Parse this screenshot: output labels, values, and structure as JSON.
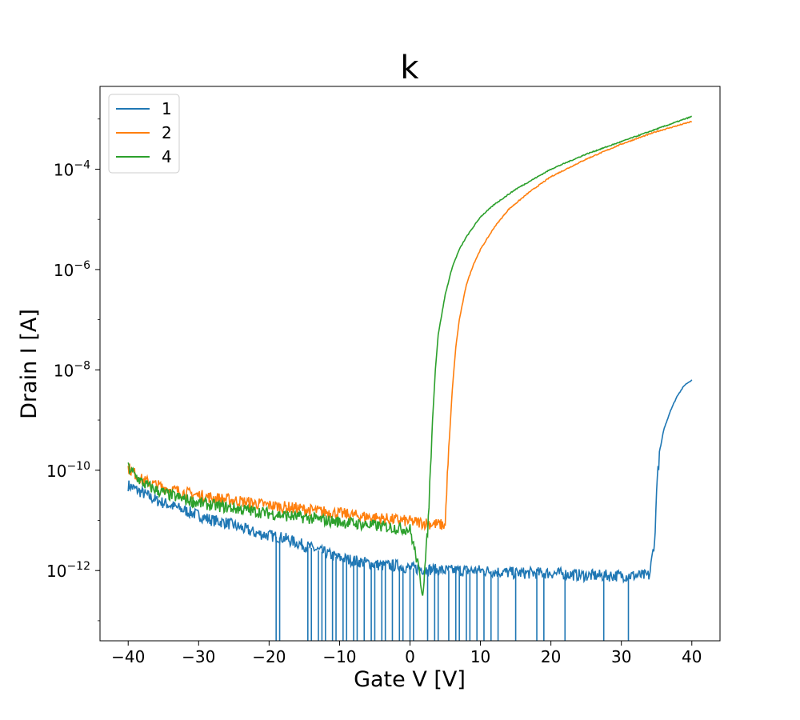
{
  "chart_data": {
    "type": "line",
    "title": "k",
    "xlabel": "Gate V [V]",
    "ylabel": "Drain I [A]",
    "xlim": [
      -44,
      44
    ],
    "ylim_log10": [
      -13.4,
      -2.35
    ],
    "yscale": "log",
    "grid": false,
    "legend_placement": "top-left",
    "x_ticks": [
      -40,
      -30,
      -20,
      -10,
      0,
      10,
      20,
      30,
      40
    ],
    "x_tick_labels": [
      "−40",
      "−30",
      "−20",
      "−10",
      "0",
      "10",
      "20",
      "30",
      "40"
    ],
    "y_ticks_log10": [
      -12,
      -10,
      -8,
      -6,
      -4
    ],
    "y_tick_labels": [
      {
        "base": "10",
        "exp": "−12"
      },
      {
        "base": "10",
        "exp": "−10"
      },
      {
        "base": "10",
        "exp": "−8"
      },
      {
        "base": "10",
        "exp": "−6"
      },
      {
        "base": "10",
        "exp": "−4"
      }
    ],
    "series": [
      {
        "name": "1",
        "color": "#1f77b4",
        "points_log10": [
          [
            -40,
            -10.3
          ],
          [
            -38,
            -10.45
          ],
          [
            -36,
            -10.6
          ],
          [
            -34,
            -10.7
          ],
          [
            -32,
            -10.8
          ],
          [
            -30,
            -10.9
          ],
          [
            -28,
            -11.0
          ],
          [
            -26,
            -11.05
          ],
          [
            -24,
            -11.15
          ],
          [
            -22,
            -11.25
          ],
          [
            -20,
            -11.3
          ],
          [
            -18,
            -11.35
          ],
          [
            -16,
            -11.45
          ],
          [
            -14,
            -11.55
          ],
          [
            -12,
            -11.65
          ],
          [
            -10,
            -11.75
          ],
          [
            -8,
            -11.8
          ],
          [
            -6,
            -11.85
          ],
          [
            -4,
            -11.9
          ],
          [
            -2,
            -11.9
          ],
          [
            0,
            -11.95
          ],
          [
            5,
            -12.0
          ],
          [
            10,
            -12.0
          ],
          [
            15,
            -12.05
          ],
          [
            20,
            -12.05
          ],
          [
            25,
            -12.1
          ],
          [
            30,
            -12.1
          ],
          [
            34,
            -12.1
          ],
          [
            34.8,
            -11.3
          ],
          [
            35,
            -10.3
          ],
          [
            35.5,
            -9.6
          ],
          [
            36,
            -9.2
          ],
          [
            37,
            -8.8
          ],
          [
            38,
            -8.5
          ],
          [
            39,
            -8.3
          ],
          [
            40,
            -8.2
          ]
        ],
        "spikes_x": [
          -19,
          -18.5,
          -14.5,
          -14,
          -13,
          -12.5,
          -12,
          -11,
          -10.5,
          -9.5,
          -9,
          -8,
          -7.5,
          -6.5,
          -5.5,
          -5,
          -4,
          -3.5,
          -2.5,
          -1.5,
          -1,
          0,
          0.5,
          2.5,
          3.5,
          4,
          5.5,
          6.5,
          7,
          8,
          8.5,
          9.5,
          10.5,
          11.5,
          12.5,
          15,
          18,
          19,
          22,
          27.5,
          31
        ]
      },
      {
        "name": "2",
        "color": "#ff7f0e",
        "points_log10": [
          [
            -40,
            -9.95
          ],
          [
            -38,
            -10.2
          ],
          [
            -36,
            -10.3
          ],
          [
            -34,
            -10.38
          ],
          [
            -32,
            -10.45
          ],
          [
            -30,
            -10.5
          ],
          [
            -28,
            -10.55
          ],
          [
            -26,
            -10.58
          ],
          [
            -24,
            -10.62
          ],
          [
            -22,
            -10.66
          ],
          [
            -20,
            -10.7
          ],
          [
            -18,
            -10.73
          ],
          [
            -16,
            -10.76
          ],
          [
            -14,
            -10.8
          ],
          [
            -12,
            -10.83
          ],
          [
            -10,
            -10.86
          ],
          [
            -8,
            -10.9
          ],
          [
            -6,
            -10.93
          ],
          [
            -4,
            -10.96
          ],
          [
            -2,
            -10.99
          ],
          [
            0,
            -11.02
          ],
          [
            2,
            -11.05
          ],
          [
            4,
            -11.08
          ],
          [
            5,
            -11.1
          ],
          [
            5.2,
            -10.4
          ],
          [
            5.5,
            -9.6
          ],
          [
            6,
            -8.4
          ],
          [
            6.5,
            -7.55
          ],
          [
            7,
            -7.0
          ],
          [
            8,
            -6.3
          ],
          [
            9,
            -5.9
          ],
          [
            10,
            -5.6
          ],
          [
            12,
            -5.15
          ],
          [
            14,
            -4.8
          ],
          [
            17,
            -4.45
          ],
          [
            20,
            -4.15
          ],
          [
            25,
            -3.8
          ],
          [
            30,
            -3.5
          ],
          [
            35,
            -3.25
          ],
          [
            40,
            -3.05
          ]
        ]
      },
      {
        "name": "4",
        "color": "#2ca02c",
        "points_log10": [
          [
            -40,
            -9.95
          ],
          [
            -38,
            -10.25
          ],
          [
            -36,
            -10.4
          ],
          [
            -34,
            -10.5
          ],
          [
            -32,
            -10.58
          ],
          [
            -30,
            -10.65
          ],
          [
            -28,
            -10.7
          ],
          [
            -26,
            -10.74
          ],
          [
            -24,
            -10.78
          ],
          [
            -22,
            -10.82
          ],
          [
            -20,
            -10.86
          ],
          [
            -18,
            -10.9
          ],
          [
            -16,
            -10.93
          ],
          [
            -14,
            -10.96
          ],
          [
            -12,
            -11.0
          ],
          [
            -10,
            -11.03
          ],
          [
            -8,
            -11.06
          ],
          [
            -6,
            -11.09
          ],
          [
            -4,
            -11.12
          ],
          [
            -2,
            -11.15
          ],
          [
            0,
            -11.18
          ],
          [
            1,
            -11.8
          ],
          [
            1.8,
            -12.45
          ],
          [
            2.2,
            -11.8
          ],
          [
            2.6,
            -11.0
          ],
          [
            2.8,
            -10.3
          ],
          [
            3.2,
            -9.0
          ],
          [
            3.6,
            -8.0
          ],
          [
            4,
            -7.3
          ],
          [
            5,
            -6.5
          ],
          [
            6,
            -5.95
          ],
          [
            7,
            -5.6
          ],
          [
            8,
            -5.35
          ],
          [
            10,
            -4.95
          ],
          [
            12,
            -4.7
          ],
          [
            15,
            -4.4
          ],
          [
            20,
            -4.0
          ],
          [
            25,
            -3.7
          ],
          [
            30,
            -3.45
          ],
          [
            35,
            -3.2
          ],
          [
            40,
            -2.95
          ]
        ]
      }
    ]
  }
}
